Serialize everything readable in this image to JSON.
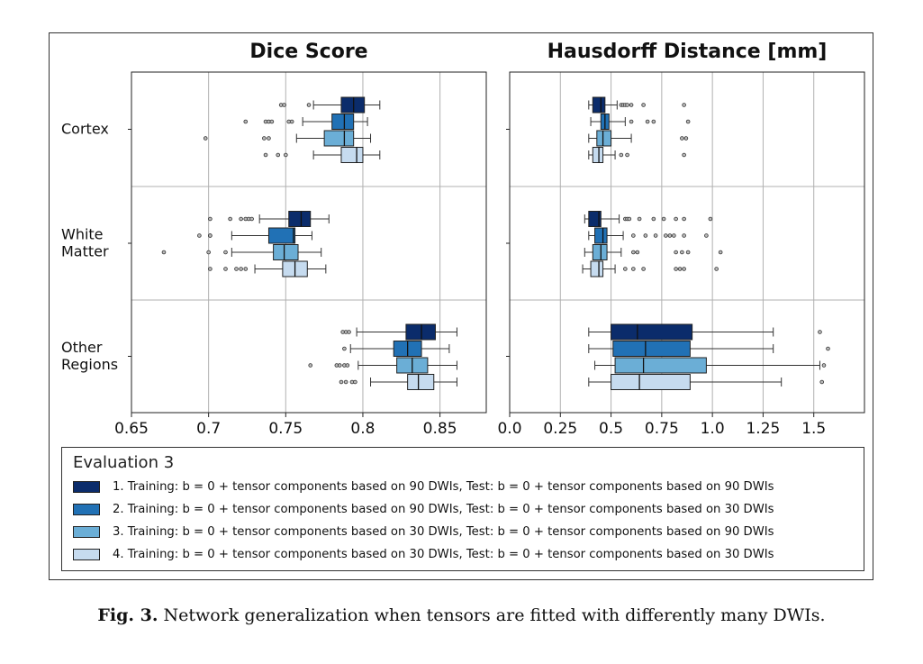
{
  "caption": {
    "label": "Fig. 3.",
    "text": "Network generalization when tensors are fitted with differently many DWIs."
  },
  "legend": {
    "title": "Evaluation 3",
    "items": [
      {
        "label": "1. Training: b = 0 + tensor components based on 90 DWIs, Test: b = 0 + tensor components based on 90 DWIs",
        "color": "#0b2c6b"
      },
      {
        "label": "2. Training: b = 0 + tensor components based on 90 DWIs, Test: b = 0 + tensor components based on 30 DWIs",
        "color": "#2171b5"
      },
      {
        "label": "3. Training: b = 0 + tensor components based on 30 DWIs, Test: b = 0 + tensor components based on 90 DWIs",
        "color": "#6baed6"
      },
      {
        "label": "4. Training: b = 0 + tensor components based on 30 DWIs, Test: b = 0 + tensor components based on 30 DWIs",
        "color": "#c6dbef"
      }
    ]
  },
  "chart_data": [
    {
      "type": "boxplot",
      "orientation": "horizontal",
      "title": "Dice Score",
      "categories": [
        "Cortex",
        "White Matter",
        "Other Regions"
      ],
      "xlim": [
        0.65,
        0.88
      ],
      "xticks": [
        "0.65",
        "0.7",
        "0.75",
        "0.8",
        "0.85"
      ],
      "xtick_values": [
        0.65,
        0.7,
        0.75,
        0.8,
        0.85
      ],
      "grid": true,
      "series": [
        {
          "name": "1",
          "color": "#0b2c6b",
          "boxes": [
            {
              "category": "Cortex",
              "whislo": 0.768,
              "q1": 0.786,
              "med": 0.794,
              "q3": 0.801,
              "whishi": 0.811,
              "fliers": [
                0.747,
                0.749,
                0.765
              ]
            },
            {
              "category": "White Matter",
              "whislo": 0.733,
              "q1": 0.752,
              "med": 0.76,
              "q3": 0.766,
              "whishi": 0.778,
              "fliers": [
                0.701,
                0.714,
                0.721,
                0.724,
                0.726,
                0.728
              ]
            },
            {
              "category": "Other Regions",
              "whislo": 0.796,
              "q1": 0.828,
              "med": 0.838,
              "q3": 0.847,
              "whishi": 0.861,
              "fliers": [
                0.787,
                0.789,
                0.791
              ]
            }
          ]
        },
        {
          "name": "2",
          "color": "#2171b5",
          "boxes": [
            {
              "category": "Cortex",
              "whislo": 0.761,
              "q1": 0.78,
              "med": 0.788,
              "q3": 0.794,
              "whishi": 0.803,
              "fliers": [
                0.724,
                0.737,
                0.739,
                0.741,
                0.752,
                0.754
              ]
            },
            {
              "category": "White Matter",
              "whislo": 0.715,
              "q1": 0.739,
              "med": 0.755,
              "q3": 0.756,
              "whishi": 0.767,
              "fliers": [
                0.694,
                0.701,
                0.701
              ]
            },
            {
              "category": "Other Regions",
              "whislo": 0.792,
              "q1": 0.82,
              "med": 0.829,
              "q3": 0.838,
              "whishi": 0.856,
              "fliers": [
                0.788
              ]
            }
          ]
        },
        {
          "name": "3",
          "color": "#6baed6",
          "boxes": [
            {
              "category": "Cortex",
              "whislo": 0.757,
              "q1": 0.775,
              "med": 0.788,
              "q3": 0.794,
              "whishi": 0.805,
              "fliers": [
                0.698,
                0.736,
                0.739
              ]
            },
            {
              "category": "White Matter",
              "whislo": 0.715,
              "q1": 0.742,
              "med": 0.749,
              "q3": 0.758,
              "whishi": 0.773,
              "fliers": [
                0.671,
                0.7,
                0.711
              ]
            },
            {
              "category": "Other Regions",
              "whislo": 0.797,
              "q1": 0.822,
              "med": 0.832,
              "q3": 0.842,
              "whishi": 0.861,
              "fliers": [
                0.766,
                0.783,
                0.785,
                0.788,
                0.79
              ]
            }
          ]
        },
        {
          "name": "4",
          "color": "#c6dbef",
          "boxes": [
            {
              "category": "Cortex",
              "whislo": 0.768,
              "q1": 0.786,
              "med": 0.796,
              "q3": 0.8,
              "whishi": 0.811,
              "fliers": [
                0.737,
                0.745,
                0.75
              ]
            },
            {
              "category": "White Matter",
              "whislo": 0.73,
              "q1": 0.748,
              "med": 0.756,
              "q3": 0.764,
              "whishi": 0.776,
              "fliers": [
                0.701,
                0.711,
                0.718,
                0.721,
                0.724
              ]
            },
            {
              "category": "Other Regions",
              "whislo": 0.805,
              "q1": 0.829,
              "med": 0.836,
              "q3": 0.846,
              "whishi": 0.861,
              "fliers": [
                0.786,
                0.789,
                0.793,
                0.795
              ]
            }
          ]
        }
      ]
    },
    {
      "type": "boxplot",
      "orientation": "horizontal",
      "title": "Hausdorff Distance [mm]",
      "categories": [
        "Cortex",
        "White Matter",
        "Other Regions"
      ],
      "xlim": [
        0.0,
        1.75
      ],
      "xticks": [
        "0.0",
        "0.25",
        "0.5",
        "0.75",
        "1.0",
        "1.25",
        "1.5"
      ],
      "xtick_values": [
        0.0,
        0.25,
        0.5,
        0.75,
        1.0,
        1.25,
        1.5
      ],
      "grid": true,
      "series": [
        {
          "name": "1",
          "color": "#0b2c6b",
          "boxes": [
            {
              "category": "Cortex",
              "whislo": 0.39,
              "q1": 0.41,
              "med": 0.45,
              "q3": 0.47,
              "whishi": 0.53,
              "fliers": [
                0.55,
                0.56,
                0.57,
                0.58,
                0.6,
                0.66,
                0.86
              ]
            },
            {
              "category": "White Matter",
              "whislo": 0.37,
              "q1": 0.39,
              "med": 0.44,
              "q3": 0.45,
              "whishi": 0.54,
              "fliers": [
                0.57,
                0.58,
                0.59,
                0.64,
                0.71,
                0.76,
                0.82,
                0.86,
                0.99
              ]
            },
            {
              "category": "Other Regions",
              "whislo": 0.39,
              "q1": 0.5,
              "med": 0.63,
              "q3": 0.9,
              "whishi": 1.3,
              "fliers": [
                1.53
              ]
            }
          ]
        },
        {
          "name": "2",
          "color": "#2171b5",
          "boxes": [
            {
              "category": "Cortex",
              "whislo": 0.4,
              "q1": 0.45,
              "med": 0.47,
              "q3": 0.49,
              "whishi": 0.57,
              "fliers": [
                0.6,
                0.68,
                0.71,
                0.88
              ]
            },
            {
              "category": "White Matter",
              "whislo": 0.39,
              "q1": 0.42,
              "med": 0.46,
              "q3": 0.48,
              "whishi": 0.56,
              "fliers": [
                0.61,
                0.67,
                0.72,
                0.77,
                0.79,
                0.81,
                0.86,
                0.97
              ]
            },
            {
              "category": "Other Regions",
              "whislo": 0.39,
              "q1": 0.51,
              "med": 0.67,
              "q3": 0.89,
              "whishi": 1.3,
              "fliers": [
                1.57
              ]
            }
          ]
        },
        {
          "name": "3",
          "color": "#6baed6",
          "boxes": [
            {
              "category": "Cortex",
              "whislo": 0.39,
              "q1": 0.43,
              "med": 0.46,
              "q3": 0.5,
              "whishi": 0.6,
              "fliers": [
                0.85,
                0.87
              ]
            },
            {
              "category": "White Matter",
              "whislo": 0.37,
              "q1": 0.41,
              "med": 0.45,
              "q3": 0.48,
              "whishi": 0.55,
              "fliers": [
                0.61,
                0.63,
                0.82,
                0.85,
                0.88,
                1.04
              ]
            },
            {
              "category": "Other Regions",
              "whislo": 0.42,
              "q1": 0.52,
              "med": 0.66,
              "q3": 0.97,
              "whishi": 1.53,
              "fliers": [
                1.55
              ]
            }
          ]
        },
        {
          "name": "4",
          "color": "#c6dbef",
          "boxes": [
            {
              "category": "Cortex",
              "whislo": 0.39,
              "q1": 0.41,
              "med": 0.44,
              "q3": 0.46,
              "whishi": 0.52,
              "fliers": [
                0.55,
                0.58,
                0.86
              ]
            },
            {
              "category": "White Matter",
              "whislo": 0.36,
              "q1": 0.4,
              "med": 0.44,
              "q3": 0.46,
              "whishi": 0.52,
              "fliers": [
                0.57,
                0.61,
                0.66,
                0.82,
                0.84,
                0.86,
                1.02
              ]
            },
            {
              "category": "Other Regions",
              "whislo": 0.39,
              "q1": 0.5,
              "med": 0.64,
              "q3": 0.89,
              "whishi": 1.34,
              "fliers": [
                1.54
              ]
            }
          ]
        }
      ]
    }
  ]
}
